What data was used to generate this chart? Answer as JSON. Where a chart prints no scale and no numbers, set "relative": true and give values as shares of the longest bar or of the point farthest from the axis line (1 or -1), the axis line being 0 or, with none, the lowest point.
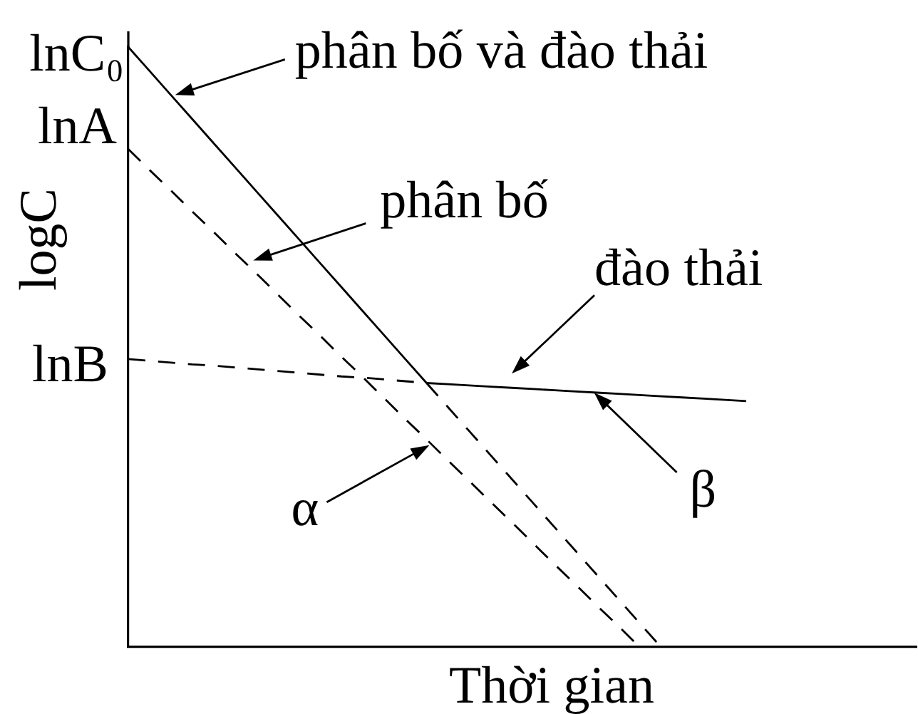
{
  "chart_data": {
    "type": "line",
    "relative": true,
    "marker": "none",
    "xlabel": "Thời gian",
    "ylabel": "logC",
    "categories": [
      null,
      null,
      null,
      null,
      null,
      null,
      null,
      null,
      null,
      null,
      null,
      null,
      null,
      null,
      null,
      null,
      null,
      null,
      null,
      null,
      null,
      null,
      null,
      null,
      null,
      null,
      null,
      null,
      null,
      null,
      null,
      null,
      null,
      null,
      null,
      null,
      null,
      null
    ],
    "series": [
      {
        "name": "phân bố và đào thải",
        "color": "#000000",
        "line_style": "solid",
        "values": [
          1,
          0.96,
          0.92,
          0.88,
          0.84,
          0.8,
          0.76,
          0.72,
          0.68,
          0.64,
          0.6,
          0.56,
          0.52,
          0.48,
          0.44,
          null,
          null,
          null,
          null,
          null,
          null,
          null,
          null,
          null,
          null,
          null,
          null,
          null,
          null,
          null,
          null,
          null,
          null,
          null,
          null,
          null,
          null,
          null
        ]
      },
      {
        "name": "đào thải",
        "color": "#000000",
        "line_style": "solid",
        "values": [
          null,
          null,
          null,
          null,
          null,
          null,
          null,
          null,
          null,
          null,
          null,
          null,
          null,
          null,
          0.44,
          0.438,
          0.436,
          0.434,
          0.432,
          0.43,
          0.428,
          0.426,
          0.424,
          0.422,
          0.42,
          0.418,
          0.416,
          0.414,
          0.412,
          0.41,
          null,
          null,
          null,
          null,
          null,
          null,
          null,
          null
        ]
      },
      {
        "color": "#000000",
        "line_style": "dashed",
        "values": [
          0.83,
          0.795,
          0.761,
          0.726,
          0.692,
          0.657,
          0.623,
          0.588,
          0.553,
          0.519,
          0.484,
          0.45,
          0.415,
          0.38,
          0.346,
          0.311,
          0.277,
          0.242,
          0.208,
          0.173,
          0.138,
          0.104,
          0.069,
          0.035,
          0,
          null,
          null,
          null,
          null,
          null,
          null,
          null,
          null,
          null,
          null,
          null,
          null,
          null
        ]
      },
      {
        "color": "#000000",
        "line_style": "dashed",
        "values": [
          0.48,
          0.477,
          0.474,
          0.471,
          0.469,
          0.466,
          0.463,
          0.46,
          0.457,
          0.454,
          0.451,
          0.449,
          0.446,
          0.443,
          0.44,
          null,
          null,
          null,
          null,
          null,
          null,
          null,
          null,
          null,
          null,
          null,
          null,
          null,
          null,
          null,
          null,
          null,
          null,
          null,
          null,
          null,
          null,
          null
        ]
      },
      {
        "color": "#000000",
        "line_style": "dashed",
        "values": [
          null,
          null,
          null,
          null,
          null,
          null,
          null,
          null,
          null,
          null,
          null,
          null,
          null,
          null,
          0.44,
          0.4,
          0.36,
          0.32,
          0.28,
          0.24,
          0.2,
          0.16,
          0.12,
          0.08,
          0.04,
          0,
          null,
          null,
          null,
          null,
          null,
          null,
          null,
          null,
          null,
          null,
          null,
          null
        ]
      }
    ],
    "annotations": [
      "lnC₀",
      "lnA",
      "lnB",
      "phân bố",
      "α",
      "β"
    ]
  }
}
